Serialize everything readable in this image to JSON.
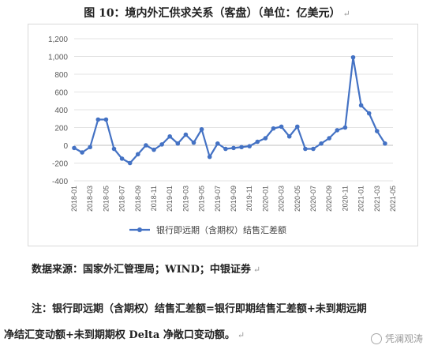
{
  "figure": {
    "title": "图 10：境内外汇供求关系（客盘）（单位：亿美元）",
    "return_mark": "↵"
  },
  "source_text": "数据来源：国家外汇管理局；WIND；中银证券",
  "note_line1": "注：银行即远期（含期权）结售汇差额=银行即期结售汇差额+未到期远期",
  "note_line2": "净结汇变动额+未到期期权 Delta 净敞口变动额。",
  "watermark": "凭澜观涛",
  "chart_data": {
    "type": "line",
    "title": "",
    "xlabel": "",
    "ylabel": "",
    "ylim": [
      -400,
      1200
    ],
    "yticks": [
      -400,
      -200,
      0,
      200,
      400,
      600,
      800,
      1000,
      1200
    ],
    "ytick_labels": [
      "-400",
      "-200",
      "0",
      "200",
      "400",
      "600",
      "800",
      "1,000",
      "1,200"
    ],
    "x": [
      "2018-01",
      "2018-02",
      "2018-03",
      "2018-04",
      "2018-05",
      "2018-06",
      "2018-07",
      "2018-08",
      "2018-09",
      "2018-10",
      "2018-11",
      "2018-12",
      "2019-01",
      "2019-02",
      "2019-03",
      "2019-04",
      "2019-05",
      "2019-06",
      "2019-07",
      "2019-08",
      "2019-09",
      "2019-10",
      "2019-11",
      "2019-12",
      "2020-01",
      "2020-02",
      "2020-03",
      "2020-04",
      "2020-05",
      "2020-06",
      "2020-07",
      "2020-08",
      "2020-09",
      "2020-10",
      "2020-11",
      "2020-12",
      "2021-01",
      "2021-02",
      "2021-03",
      "2021-04",
      "2021-05"
    ],
    "xtick_labels": [
      "2018-01",
      "2018-03",
      "2018-05",
      "2018-07",
      "2018-09",
      "2018-11",
      "2019-01",
      "2019-03",
      "2019-05",
      "2019-07",
      "2019-09",
      "2019-11",
      "2020-01",
      "2020-03",
      "2020-05",
      "2020-07",
      "2020-09",
      "2020-11",
      "2021-01",
      "2021-03",
      "2021-05"
    ],
    "series": [
      {
        "name": "银行即远期（含期权）结售汇差额",
        "color": "#4472c4",
        "values": [
          -30,
          -80,
          -20,
          290,
          290,
          -40,
          -150,
          -200,
          -100,
          0,
          -50,
          10,
          100,
          20,
          120,
          30,
          180,
          -130,
          20,
          -40,
          -30,
          -20,
          -10,
          40,
          80,
          190,
          210,
          100,
          210,
          -40,
          -40,
          20,
          80,
          170,
          200,
          990,
          450,
          360,
          160,
          20,
          null
        ]
      }
    ],
    "grid": true,
    "legend_position": "bottom"
  }
}
